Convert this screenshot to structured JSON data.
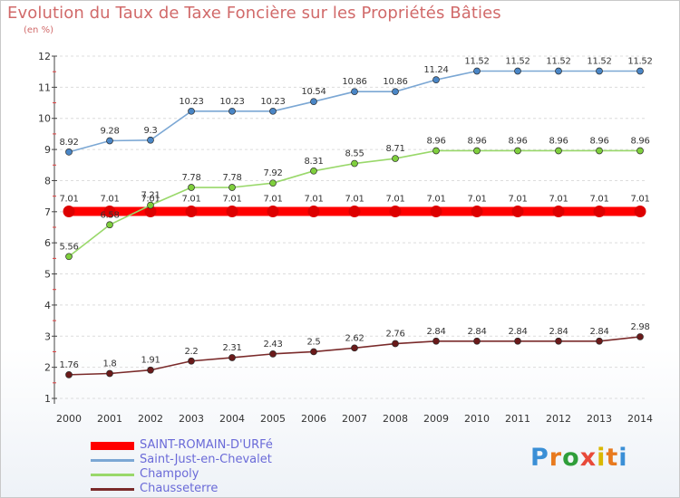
{
  "title": "Evolution du Taux de Taxe Foncière sur les Propriétés Bâties",
  "subtitle": "(en %)",
  "logo": {
    "text": "Proxiti",
    "colors": [
      "#3a8fd6",
      "#e87a1e",
      "#2f9e3a",
      "#e84a3a",
      "#d9b800",
      "#e87a1e",
      "#3a8fd6"
    ]
  },
  "chart_data": {
    "type": "line",
    "title": "Evolution du Taux de Taxe Foncière sur les Propriétés Bâties",
    "ylabel": "(en %)",
    "xlabel": "",
    "ylim": [
      1,
      12
    ],
    "yticks": [
      "1",
      "2",
      "3",
      "4",
      "5",
      "6",
      "7",
      "8",
      "9",
      "10",
      "11",
      "12"
    ],
    "categories": [
      "2000",
      "2001",
      "2002",
      "2003",
      "2004",
      "2005",
      "2006",
      "2007",
      "2008",
      "2009",
      "2010",
      "2011",
      "2012",
      "2013",
      "2014"
    ],
    "series": [
      {
        "name": "SAINT-ROMAIN-D'URFé",
        "color": "#ff0000",
        "marker": "#dd0000",
        "thick": true,
        "values": [
          7.01,
          7.01,
          7.01,
          7.01,
          7.01,
          7.01,
          7.01,
          7.01,
          7.01,
          7.01,
          7.01,
          7.01,
          7.01,
          7.01,
          7.01
        ],
        "labels": [
          "7.01",
          "7.01",
          "7.01",
          "7.01",
          "7.01",
          "7.01",
          "7.01",
          "7.01",
          "7.01",
          "7.01",
          "7.01",
          "7.01",
          "7.01",
          "7.01",
          "7.01"
        ]
      },
      {
        "name": "Saint-Just-en-Chevalet",
        "color": "#7ba7d4",
        "marker": "#4a86c6",
        "values": [
          8.92,
          9.28,
          9.3,
          10.23,
          10.23,
          10.23,
          10.54,
          10.86,
          10.86,
          11.24,
          11.52,
          11.52,
          11.52,
          11.52,
          11.52
        ],
        "labels": [
          "8.92",
          "9.28",
          "9.3",
          "10.23",
          "10.23",
          "10.23",
          "10.54",
          "10.86",
          "10.86",
          "11.24",
          "11.52",
          "11.52",
          "11.52",
          "11.52",
          "11.52"
        ]
      },
      {
        "name": "Champoly",
        "color": "#99d86a",
        "marker": "#7fcf3d",
        "values": [
          5.56,
          6.58,
          7.21,
          7.78,
          7.78,
          7.92,
          8.31,
          8.55,
          8.71,
          8.96,
          8.96,
          8.96,
          8.96,
          8.96,
          8.96
        ],
        "labels": [
          "5.56",
          "6.58",
          "7.21",
          "7.78",
          "7.78",
          "7.92",
          "8.31",
          "8.55",
          "8.71",
          "8.96",
          "8.96",
          "8.96",
          "8.96",
          "8.96",
          "8.96"
        ]
      },
      {
        "name": "Chausseterre",
        "color": "#7a2a2a",
        "marker": "#6a1a1a",
        "values": [
          1.76,
          1.8,
          1.91,
          2.2,
          2.31,
          2.43,
          2.5,
          2.62,
          2.76,
          2.84,
          2.84,
          2.84,
          2.84,
          2.84,
          2.98
        ],
        "labels": [
          "1.76",
          "1.8",
          "1.91",
          "2.2",
          "2.31",
          "2.43",
          "2.5",
          "2.62",
          "2.76",
          "2.84",
          "2.84",
          "2.84",
          "2.84",
          "2.84",
          "2.98"
        ]
      }
    ]
  }
}
